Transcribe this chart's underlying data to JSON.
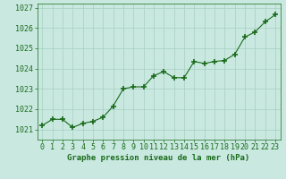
{
  "x": [
    0,
    1,
    2,
    3,
    4,
    5,
    6,
    7,
    8,
    9,
    10,
    11,
    12,
    13,
    14,
    15,
    16,
    17,
    18,
    19,
    20,
    21,
    22,
    23
  ],
  "y": [
    1021.2,
    1021.5,
    1021.5,
    1021.1,
    1021.3,
    1021.4,
    1021.6,
    1022.15,
    1023.0,
    1023.1,
    1023.1,
    1023.65,
    1023.85,
    1023.55,
    1023.55,
    1024.35,
    1024.25,
    1024.35,
    1024.4,
    1024.7,
    1025.55,
    1025.8,
    1026.3,
    1026.65
  ],
  "xlabel": "Graphe pression niveau de la mer (hPa)",
  "ylim_min": 1020.5,
  "ylim_max": 1027.2,
  "xlim_min": -0.5,
  "xlim_max": 23.5,
  "ytick_start": 1021,
  "ytick_end": 1027,
  "line_color": "#1a6b1a",
  "marker_color": "#1a6b1a",
  "bg_color": "#c8e8e0",
  "grid_color": "#a8cfc4",
  "xlabel_color": "#1a6b1a",
  "xlabel_fontsize": 6.5,
  "tick_fontsize": 6.0,
  "marker_size": 4.0,
  "linewidth": 0.8
}
